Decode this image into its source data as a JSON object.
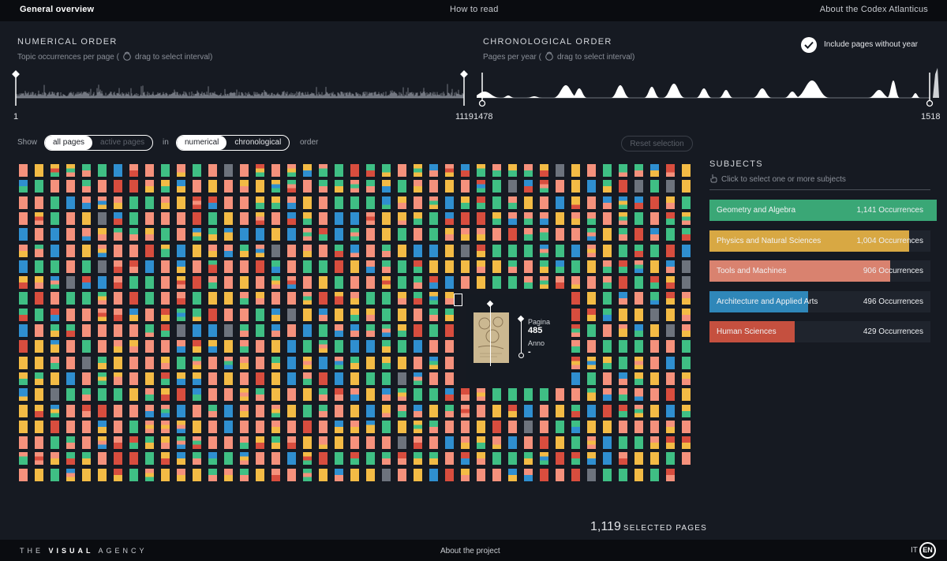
{
  "topbar": {
    "general_overview": "General overview",
    "how_to_read": "How to read",
    "about_codex": "About the Codex Atlanticus"
  },
  "numerical": {
    "title": "NUMERICAL ORDER",
    "subtitle_a": "Topic occurrences per page (",
    "subtitle_b": "drag to select interval)",
    "start_label": "1",
    "end_label": "1119",
    "icon": "hand-drag-icon"
  },
  "chronological": {
    "title": "CHRONOLOGICAL ORDER",
    "subtitle_a": "Pages per year (",
    "subtitle_b": "drag to select interval)",
    "start_label": "1478",
    "end_label": "1518",
    "include_label": "Include pages without year",
    "include_checked": true
  },
  "controls": {
    "show_label": "Show",
    "all_pages": "all pages",
    "active_pages": "active pages",
    "in_label": "in",
    "numerical": "numerical",
    "chronological": "chronological",
    "order_label": "order",
    "reset": "Reset selection"
  },
  "tooltip": {
    "pagina_label": "Pagina",
    "pagina_value": "485",
    "anno_label": "Anno",
    "anno_value": "-"
  },
  "subjects": {
    "title": "SUBJECTS",
    "hint": "Click to select one or more subjects",
    "items": [
      {
        "name": "Geometry and Algebra",
        "count": "1,141 Occurrences",
        "value": 1141,
        "color": "#3aa776"
      },
      {
        "name": "Physics and Natural Sciences",
        "count": "1,004 Occurrences",
        "value": 1004,
        "color": "#d8a843"
      },
      {
        "name": "Tools and Machines",
        "count": "906 Occurrences",
        "value": 906,
        "color": "#d9826f"
      },
      {
        "name": "Architecture and Applied Arts",
        "count": "496 Occurrences",
        "value": 496,
        "color": "#2f87b9"
      },
      {
        "name": "Human Sciences",
        "count": "429 Occurrences",
        "value": 429,
        "color": "#c5503f"
      }
    ],
    "max_value": 1141
  },
  "summary": {
    "selected_number": "1,119",
    "selected_label": "SELECTED PAGES"
  },
  "footer": {
    "brand_pre": "THE ",
    "brand_mid": "VISUAL",
    "brand_post": " AGENCY",
    "about_project": "About the project",
    "lang_it": "IT",
    "lang_en": "EN"
  },
  "grid_colors": {
    "salmon": "#f5917c",
    "green": "#3fbf84",
    "yellow": "#f3bb45",
    "blue": "#2f8fd0",
    "red": "#d84d3e",
    "gray": "#6d737d"
  }
}
